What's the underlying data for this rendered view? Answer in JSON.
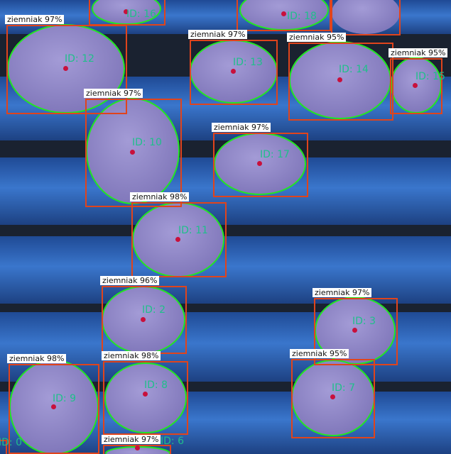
{
  "class_label": "ziemniak",
  "colors": {
    "box": "#e0441c",
    "contour": "#22e622",
    "id_text": "#1fbf8a",
    "center": "#c8103c",
    "roller": "#2f64b8",
    "potato": "#8f86c6"
  },
  "detections": [
    {
      "name": "det-top-a",
      "score": "",
      "id": "ID: 16"
    },
    {
      "name": "det-top-b",
      "score": "",
      "id": "ID: 18"
    },
    {
      "name": "det-top-c",
      "score": "",
      "id": ""
    },
    {
      "name": "det-12",
      "score": "97%",
      "id": "ID: 12"
    },
    {
      "name": "det-13",
      "score": "97%",
      "id": "ID: 13"
    },
    {
      "name": "det-14",
      "score": "95%",
      "id": "ID: 14"
    },
    {
      "name": "det-15",
      "score": "95%",
      "id": "ID: 15"
    },
    {
      "name": "det-10",
      "score": "97%",
      "id": "ID: 10"
    },
    {
      "name": "det-17",
      "score": "97%",
      "id": "ID: 17"
    },
    {
      "name": "det-11",
      "score": "98%",
      "id": "ID: 11"
    },
    {
      "name": "det-2",
      "score": "96%",
      "id": "ID: 2"
    },
    {
      "name": "det-3",
      "score": "97%",
      "id": "ID: 3"
    },
    {
      "name": "det-9",
      "score": "98%",
      "id": "ID: 9"
    },
    {
      "name": "det-8",
      "score": "98%",
      "id": "ID: 8"
    },
    {
      "name": "det-7",
      "score": "95%",
      "id": "ID: 7"
    },
    {
      "name": "det-bottom",
      "score": "97%",
      "id": "ID: 6"
    },
    {
      "name": "det-edge",
      "score": "",
      "id": "ID: 0"
    }
  ]
}
